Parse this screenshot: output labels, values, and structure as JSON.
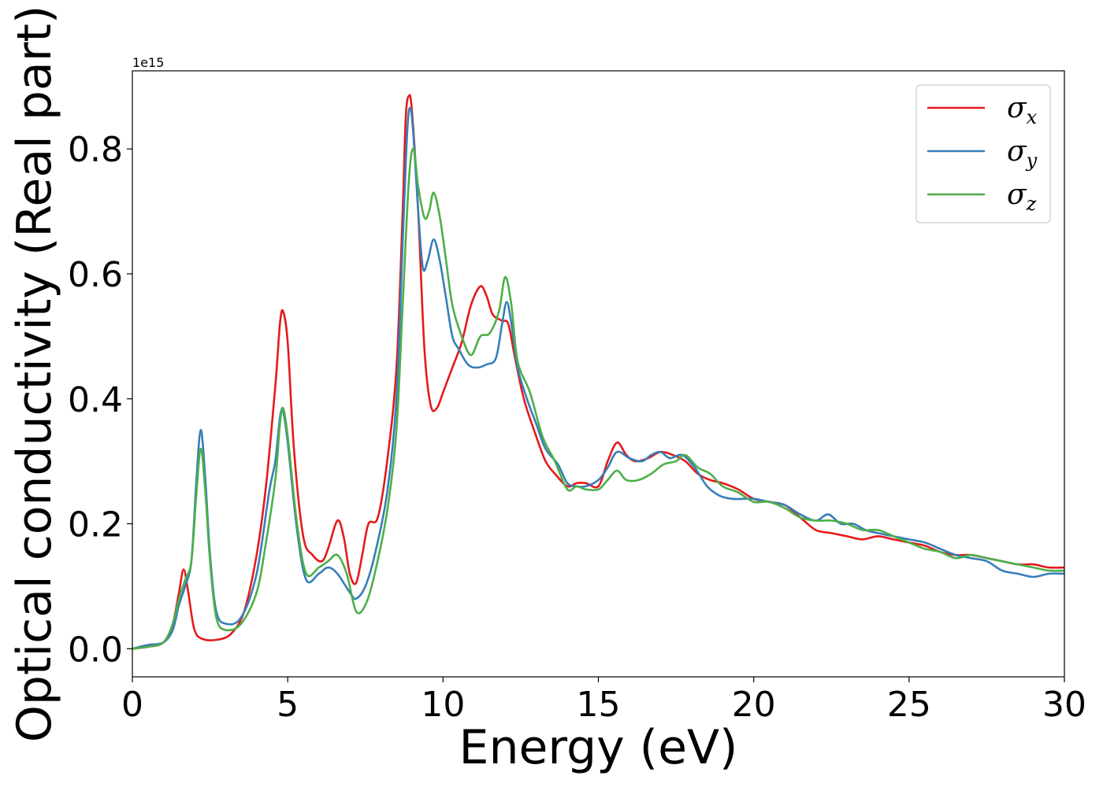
{
  "chart_data": {
    "type": "line",
    "xlabel": "Energy (eV)",
    "ylabel": "Optical conductivity (Real part)",
    "y_offset_text": "1e15",
    "xlim": [
      0,
      30
    ],
    "ylim": [
      -0.045,
      0.925
    ],
    "y_scale_factor": 1000000000000000.0,
    "x_ticks": [
      0,
      5,
      10,
      15,
      20,
      25,
      30
    ],
    "x_tick_labels": [
      "0",
      "5",
      "10",
      "15",
      "20",
      "25",
      "30"
    ],
    "y_ticks": [
      0.0,
      0.2,
      0.4,
      0.6,
      0.8
    ],
    "y_tick_labels": [
      "0.0",
      "0.2",
      "0.4",
      "0.6",
      "0.8"
    ],
    "grid": false,
    "legend_position": "top-right",
    "series": [
      {
        "name": "σx",
        "symbol": "σ",
        "sub": "x",
        "color": "#e41a1c",
        "points": [
          [
            0,
            0
          ],
          [
            0.5,
            0.003
          ],
          [
            1,
            0.01
          ],
          [
            1.3,
            0.04
          ],
          [
            1.5,
            0.09
          ],
          [
            1.65,
            0.127
          ],
          [
            1.8,
            0.09
          ],
          [
            2,
            0.03
          ],
          [
            2.3,
            0.015
          ],
          [
            2.8,
            0.015
          ],
          [
            3.2,
            0.025
          ],
          [
            3.6,
            0.06
          ],
          [
            4,
            0.15
          ],
          [
            4.3,
            0.26
          ],
          [
            4.6,
            0.42
          ],
          [
            4.75,
            0.52
          ],
          [
            4.85,
            0.54
          ],
          [
            5,
            0.49
          ],
          [
            5.2,
            0.32
          ],
          [
            5.5,
            0.18
          ],
          [
            5.8,
            0.15
          ],
          [
            6.1,
            0.14
          ],
          [
            6.3,
            0.16
          ],
          [
            6.6,
            0.205
          ],
          [
            6.8,
            0.18
          ],
          [
            7,
            0.12
          ],
          [
            7.2,
            0.105
          ],
          [
            7.4,
            0.15
          ],
          [
            7.6,
            0.2
          ],
          [
            7.9,
            0.21
          ],
          [
            8.2,
            0.3
          ],
          [
            8.5,
            0.45
          ],
          [
            8.7,
            0.7
          ],
          [
            8.8,
            0.85
          ],
          [
            8.9,
            0.885
          ],
          [
            9,
            0.86
          ],
          [
            9.2,
            0.7
          ],
          [
            9.4,
            0.48
          ],
          [
            9.6,
            0.39
          ],
          [
            9.8,
            0.385
          ],
          [
            10,
            0.41
          ],
          [
            10.3,
            0.45
          ],
          [
            10.6,
            0.49
          ],
          [
            10.9,
            0.55
          ],
          [
            11.2,
            0.58
          ],
          [
            11.4,
            0.565
          ],
          [
            11.6,
            0.535
          ],
          [
            11.9,
            0.525
          ],
          [
            12.1,
            0.52
          ],
          [
            12.3,
            0.47
          ],
          [
            12.6,
            0.4
          ],
          [
            13,
            0.34
          ],
          [
            13.3,
            0.3
          ],
          [
            13.6,
            0.28
          ],
          [
            14,
            0.26
          ],
          [
            14.3,
            0.265
          ],
          [
            14.6,
            0.265
          ],
          [
            15,
            0.26
          ],
          [
            15.3,
            0.3
          ],
          [
            15.6,
            0.33
          ],
          [
            15.9,
            0.31
          ],
          [
            16.2,
            0.3
          ],
          [
            16.6,
            0.305
          ],
          [
            17,
            0.315
          ],
          [
            17.4,
            0.31
          ],
          [
            17.8,
            0.3
          ],
          [
            18.2,
            0.28
          ],
          [
            18.6,
            0.27
          ],
          [
            19,
            0.265
          ],
          [
            19.5,
            0.255
          ],
          [
            20,
            0.24
          ],
          [
            20.5,
            0.235
          ],
          [
            21,
            0.23
          ],
          [
            21.5,
            0.21
          ],
          [
            22,
            0.19
          ],
          [
            22.5,
            0.185
          ],
          [
            23,
            0.18
          ],
          [
            23.5,
            0.175
          ],
          [
            24,
            0.18
          ],
          [
            24.5,
            0.175
          ],
          [
            25,
            0.17
          ],
          [
            25.5,
            0.165
          ],
          [
            26,
            0.155
          ],
          [
            26.5,
            0.15
          ],
          [
            27,
            0.15
          ],
          [
            27.5,
            0.145
          ],
          [
            28,
            0.14
          ],
          [
            28.5,
            0.135
          ],
          [
            29,
            0.135
          ],
          [
            29.5,
            0.13
          ],
          [
            30,
            0.13
          ]
        ]
      },
      {
        "name": "σy",
        "symbol": "σ",
        "sub": "y",
        "color": "#377eb8",
        "points": [
          [
            0,
            0
          ],
          [
            0.5,
            0.006
          ],
          [
            1,
            0.01
          ],
          [
            1.3,
            0.03
          ],
          [
            1.5,
            0.07
          ],
          [
            1.7,
            0.1
          ],
          [
            1.9,
            0.14
          ],
          [
            2.05,
            0.26
          ],
          [
            2.2,
            0.35
          ],
          [
            2.35,
            0.27
          ],
          [
            2.5,
            0.15
          ],
          [
            2.7,
            0.06
          ],
          [
            3,
            0.04
          ],
          [
            3.5,
            0.05
          ],
          [
            4,
            0.12
          ],
          [
            4.4,
            0.25
          ],
          [
            4.6,
            0.3
          ],
          [
            4.75,
            0.37
          ],
          [
            4.85,
            0.38
          ],
          [
            5,
            0.33
          ],
          [
            5.3,
            0.19
          ],
          [
            5.6,
            0.11
          ],
          [
            6,
            0.12
          ],
          [
            6.3,
            0.13
          ],
          [
            6.6,
            0.12
          ],
          [
            7,
            0.09
          ],
          [
            7.2,
            0.08
          ],
          [
            7.5,
            0.1
          ],
          [
            7.8,
            0.15
          ],
          [
            8.2,
            0.25
          ],
          [
            8.5,
            0.4
          ],
          [
            8.7,
            0.65
          ],
          [
            8.85,
            0.83
          ],
          [
            8.95,
            0.865
          ],
          [
            9.05,
            0.82
          ],
          [
            9.2,
            0.7
          ],
          [
            9.35,
            0.61
          ],
          [
            9.5,
            0.62
          ],
          [
            9.7,
            0.655
          ],
          [
            9.9,
            0.62
          ],
          [
            10.1,
            0.56
          ],
          [
            10.3,
            0.5
          ],
          [
            10.5,
            0.48
          ],
          [
            10.8,
            0.455
          ],
          [
            11.1,
            0.45
          ],
          [
            11.4,
            0.455
          ],
          [
            11.7,
            0.465
          ],
          [
            11.9,
            0.52
          ],
          [
            12.05,
            0.555
          ],
          [
            12.2,
            0.52
          ],
          [
            12.4,
            0.45
          ],
          [
            12.7,
            0.4
          ],
          [
            13,
            0.36
          ],
          [
            13.3,
            0.32
          ],
          [
            13.7,
            0.295
          ],
          [
            14,
            0.265
          ],
          [
            14.3,
            0.26
          ],
          [
            14.6,
            0.26
          ],
          [
            15,
            0.27
          ],
          [
            15.3,
            0.29
          ],
          [
            15.6,
            0.315
          ],
          [
            16,
            0.305
          ],
          [
            16.4,
            0.3
          ],
          [
            16.7,
            0.31
          ],
          [
            17,
            0.315
          ],
          [
            17.3,
            0.305
          ],
          [
            17.7,
            0.31
          ],
          [
            18.1,
            0.29
          ],
          [
            18.5,
            0.26
          ],
          [
            18.9,
            0.245
          ],
          [
            19.3,
            0.24
          ],
          [
            19.7,
            0.24
          ],
          [
            20,
            0.24
          ],
          [
            20.5,
            0.235
          ],
          [
            21,
            0.23
          ],
          [
            21.5,
            0.215
          ],
          [
            22,
            0.205
          ],
          [
            22.4,
            0.215
          ],
          [
            22.8,
            0.2
          ],
          [
            23.2,
            0.2
          ],
          [
            23.6,
            0.19
          ],
          [
            24,
            0.185
          ],
          [
            24.5,
            0.18
          ],
          [
            25,
            0.175
          ],
          [
            25.5,
            0.17
          ],
          [
            26,
            0.16
          ],
          [
            26.5,
            0.15
          ],
          [
            27,
            0.145
          ],
          [
            27.5,
            0.14
          ],
          [
            28,
            0.125
          ],
          [
            28.5,
            0.12
          ],
          [
            29,
            0.115
          ],
          [
            29.5,
            0.12
          ],
          [
            30,
            0.12
          ]
        ]
      },
      {
        "name": "σz",
        "symbol": "σ",
        "sub": "z",
        "color": "#4daf4a",
        "points": [
          [
            0,
            0
          ],
          [
            0.5,
            0.003
          ],
          [
            1,
            0.01
          ],
          [
            1.3,
            0.04
          ],
          [
            1.5,
            0.08
          ],
          [
            1.7,
            0.11
          ],
          [
            1.9,
            0.14
          ],
          [
            2.05,
            0.24
          ],
          [
            2.2,
            0.32
          ],
          [
            2.35,
            0.25
          ],
          [
            2.5,
            0.14
          ],
          [
            2.7,
            0.05
          ],
          [
            3,
            0.03
          ],
          [
            3.5,
            0.04
          ],
          [
            4,
            0.09
          ],
          [
            4.3,
            0.17
          ],
          [
            4.6,
            0.27
          ],
          [
            4.75,
            0.36
          ],
          [
            4.85,
            0.385
          ],
          [
            5,
            0.34
          ],
          [
            5.3,
            0.2
          ],
          [
            5.6,
            0.12
          ],
          [
            6,
            0.13
          ],
          [
            6.3,
            0.14
          ],
          [
            6.6,
            0.15
          ],
          [
            6.9,
            0.12
          ],
          [
            7.2,
            0.06
          ],
          [
            7.5,
            0.07
          ],
          [
            7.8,
            0.12
          ],
          [
            8.2,
            0.22
          ],
          [
            8.5,
            0.35
          ],
          [
            8.7,
            0.55
          ],
          [
            8.9,
            0.75
          ],
          [
            9.05,
            0.8
          ],
          [
            9.2,
            0.74
          ],
          [
            9.4,
            0.69
          ],
          [
            9.55,
            0.7
          ],
          [
            9.7,
            0.73
          ],
          [
            9.9,
            0.69
          ],
          [
            10.1,
            0.62
          ],
          [
            10.3,
            0.55
          ],
          [
            10.6,
            0.5
          ],
          [
            10.9,
            0.47
          ],
          [
            11.2,
            0.5
          ],
          [
            11.5,
            0.505
          ],
          [
            11.8,
            0.54
          ],
          [
            12,
            0.595
          ],
          [
            12.2,
            0.55
          ],
          [
            12.4,
            0.46
          ],
          [
            12.8,
            0.41
          ],
          [
            13.2,
            0.34
          ],
          [
            13.6,
            0.3
          ],
          [
            14,
            0.255
          ],
          [
            14.3,
            0.26
          ],
          [
            14.6,
            0.255
          ],
          [
            15,
            0.255
          ],
          [
            15.3,
            0.27
          ],
          [
            15.6,
            0.285
          ],
          [
            15.9,
            0.27
          ],
          [
            16.3,
            0.27
          ],
          [
            16.7,
            0.28
          ],
          [
            17.1,
            0.295
          ],
          [
            17.5,
            0.3
          ],
          [
            17.8,
            0.31
          ],
          [
            18.2,
            0.29
          ],
          [
            18.6,
            0.28
          ],
          [
            19,
            0.26
          ],
          [
            19.5,
            0.25
          ],
          [
            20,
            0.235
          ],
          [
            20.5,
            0.235
          ],
          [
            21,
            0.225
          ],
          [
            21.5,
            0.21
          ],
          [
            22,
            0.205
          ],
          [
            22.5,
            0.205
          ],
          [
            23,
            0.2
          ],
          [
            23.5,
            0.19
          ],
          [
            24,
            0.19
          ],
          [
            24.5,
            0.18
          ],
          [
            25,
            0.17
          ],
          [
            25.5,
            0.16
          ],
          [
            26,
            0.155
          ],
          [
            26.5,
            0.145
          ],
          [
            27,
            0.15
          ],
          [
            27.5,
            0.145
          ],
          [
            28,
            0.14
          ],
          [
            28.5,
            0.135
          ],
          [
            29,
            0.13
          ],
          [
            29.5,
            0.125
          ],
          [
            30,
            0.125
          ]
        ]
      }
    ]
  }
}
